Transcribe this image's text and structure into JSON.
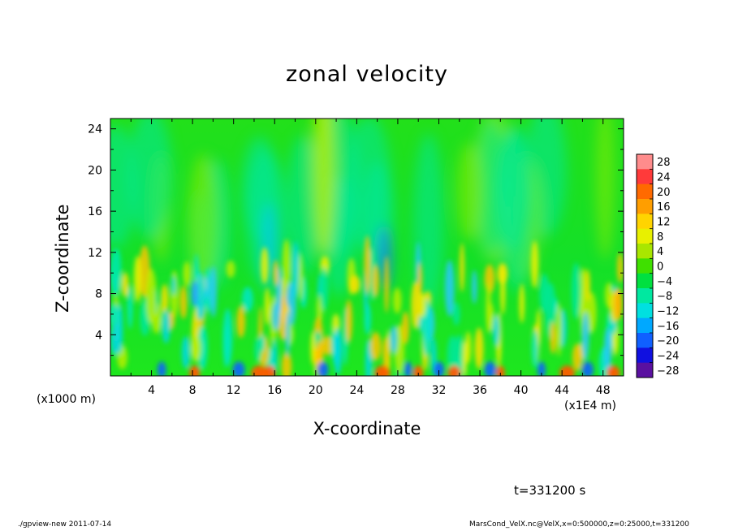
{
  "page": {
    "footer_left": "./gpview-new  2011-07-14",
    "footer_right": "MarsCond_VelX.nc@VelX,x=0:500000,z=0:25000,t=331200",
    "timestamp": "t=331200 s"
  },
  "chart_data": {
    "type": "heatmap",
    "title": "zonal velocity",
    "xlabel": "X-coordinate",
    "ylabel": "Z-coordinate",
    "x_unit_left": "(x1000 m)",
    "x_unit_right": "(x1E4 m)",
    "xlim": [
      0,
      50
    ],
    "ylim": [
      0,
      25
    ],
    "x_ticks": [
      4,
      8,
      12,
      16,
      20,
      24,
      28,
      32,
      36,
      40,
      44,
      48
    ],
    "y_ticks": [
      4,
      8,
      12,
      16,
      20,
      24
    ],
    "colorbar": {
      "levels": [
        28,
        24,
        20,
        16,
        12,
        8,
        4,
        0,
        -4,
        -8,
        -12,
        -16,
        -20,
        -24,
        -28
      ],
      "labels": [
        "28",
        "24",
        "20",
        "16",
        "12",
        "8",
        "4",
        "0",
        "−4",
        "−8",
        "−12",
        "−16",
        "−20",
        "−24",
        "−28"
      ],
      "colors": [
        "#ff8c8c",
        "#ff3a3a",
        "#ff6a00",
        "#ff9e00",
        "#ffd400",
        "#e8f000",
        "#a8e600",
        "#3fe000",
        "#00e040",
        "#00e8a0",
        "#00e0e0",
        "#00a8ff",
        "#1060ff",
        "#1010e0",
        "#5a10a0"
      ]
    },
    "grid": false
  }
}
